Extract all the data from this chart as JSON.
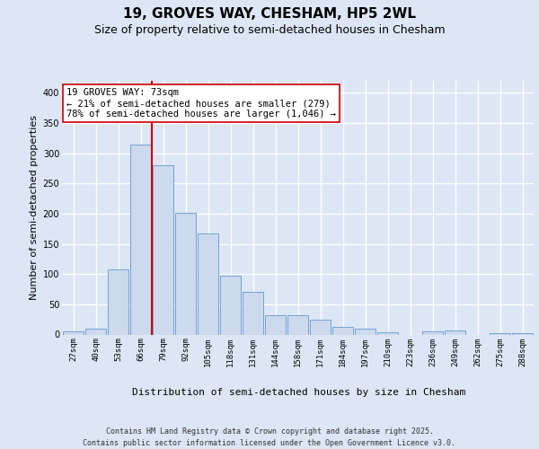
{
  "title": "19, GROVES WAY, CHESHAM, HP5 2WL",
  "subtitle": "Size of property relative to semi-detached houses in Chesham",
  "xlabel": "Distribution of semi-detached houses by size in Chesham",
  "ylabel": "Number of semi-detached properties",
  "categories": [
    "27sqm",
    "40sqm",
    "53sqm",
    "66sqm",
    "79sqm",
    "92sqm",
    "105sqm",
    "118sqm",
    "131sqm",
    "144sqm",
    "158sqm",
    "171sqm",
    "184sqm",
    "197sqm",
    "210sqm",
    "223sqm",
    "236sqm",
    "249sqm",
    "262sqm",
    "275sqm",
    "288sqm"
  ],
  "values": [
    5,
    9,
    108,
    315,
    280,
    202,
    167,
    97,
    70,
    32,
    32,
    25,
    12,
    10,
    4,
    0,
    5,
    6,
    0,
    2,
    2
  ],
  "bar_color": "#ccd9ee",
  "bar_edge_color": "#6699cc",
  "vline_color": "#cc0000",
  "vline_x": 3.5,
  "annotation_text": "19 GROVES WAY: 73sqm\n← 21% of semi-detached houses are smaller (279)\n78% of semi-detached houses are larger (1,046) →",
  "annotation_box_facecolor": "#ffffff",
  "annotation_box_edgecolor": "#cc0000",
  "ylim": [
    0,
    420
  ],
  "yticks": [
    0,
    50,
    100,
    150,
    200,
    250,
    300,
    350,
    400
  ],
  "background_color": "#dce6f5",
  "grid_color": "#ffffff",
  "footer_line1": "Contains HM Land Registry data © Crown copyright and database right 2025.",
  "footer_line2": "Contains public sector information licensed under the Open Government Licence v3.0.",
  "title_fontsize": 11,
  "subtitle_fontsize": 9,
  "ylabel_fontsize": 8,
  "xlabel_fontsize": 8,
  "tick_fontsize": 6.5,
  "annotation_fontsize": 7.5,
  "footer_fontsize": 6
}
